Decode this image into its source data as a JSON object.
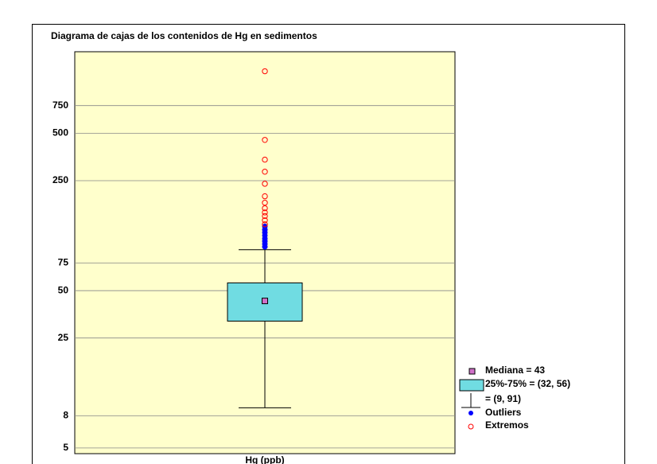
{
  "chart_data": {
    "type": "box",
    "title": "Diagrama de cajas de los contenidos de Hg en sedimentos",
    "x_label": "Hg (ppb)",
    "log_y": true,
    "grid": true,
    "ylim": [
      4.6,
      1650
    ],
    "yticks": [
      5,
      8,
      25,
      50,
      75,
      250,
      500,
      750
    ],
    "box_color": "#70dce2",
    "median_color": "#d070c8",
    "outlier_color": "#0000ff",
    "extreme_color": "#ff0000",
    "background": "#ffffcc",
    "legend_position": "lower right",
    "boxes": [
      {
        "median": 43,
        "q1": 32,
        "q3": 56,
        "whisker_low": 9,
        "whisker_high": 91,
        "outliers": [
          95,
          99,
          103,
          107,
          112,
          117,
          122,
          128
        ],
        "extremes": [
          132,
          140,
          149,
          157,
          167,
          181,
          199,
          239,
          285,
          340,
          454,
          1240
        ]
      }
    ],
    "legend": [
      "Mediana = 43",
      "25%-75% = (32, 56)",
      "= (9, 91)",
      "Outliers",
      "Extremos"
    ]
  }
}
